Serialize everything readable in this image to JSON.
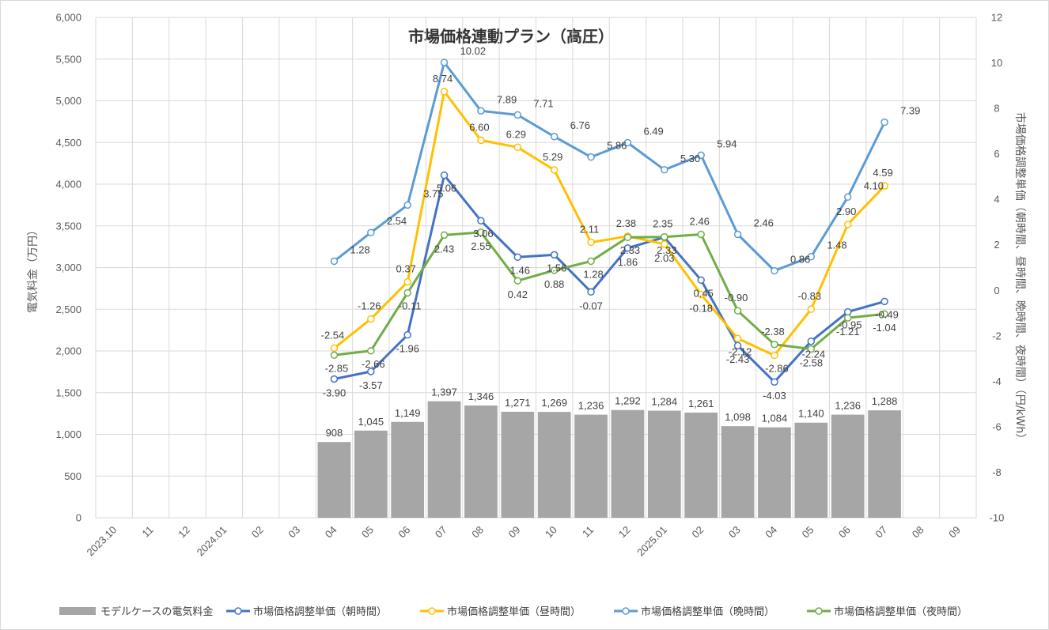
{
  "chart_data": {
    "type": "bar+line",
    "title": "市場価格連動プラン（高圧）",
    "categories": [
      "2023.10",
      "11",
      "12",
      "2024.01",
      "02",
      "03",
      "04",
      "05",
      "06",
      "07",
      "08",
      "09",
      "10",
      "11",
      "12",
      "2025.01",
      "02",
      "03",
      "04",
      "05",
      "06",
      "07",
      "08",
      "09"
    ],
    "y_left": {
      "label": "電気料金（万円）",
      "range": [
        0,
        6000
      ],
      "step": 500,
      "ticks": [
        "0",
        "500",
        "1,000",
        "1,500",
        "2,000",
        "2,500",
        "3,000",
        "3,500",
        "4,000",
        "4,500",
        "5,000",
        "5,500",
        "6,000"
      ]
    },
    "y_right": {
      "label": "市場価格調整単価（朝時間、昼時間、晩時間、夜時間）（円/kWh）",
      "range": [
        -10,
        12
      ],
      "step": 2,
      "ticks": [
        "-10",
        "-8",
        "-6",
        "-4",
        "-2",
        "0",
        "2",
        "4",
        "6",
        "8",
        "10",
        "12"
      ]
    },
    "bar_series": {
      "name": "モデルケースの電気料金",
      "color": "#a6a6a6",
      "values": [
        null,
        null,
        null,
        null,
        null,
        null,
        908,
        1045,
        1149,
        1397,
        1346,
        1271,
        1269,
        1236,
        1292,
        1284,
        1261,
        1098,
        1084,
        1140,
        1236,
        1288,
        null,
        null
      ],
      "labels": [
        "",
        "",
        "",
        "",
        "",
        "",
        "908",
        "1,045",
        "1,149",
        "1,397",
        "1,346",
        "1,271",
        "1,269",
        "1,236",
        "1,292",
        "1,284",
        "1,261",
        "1,098",
        "1,084",
        "1,140",
        "1,236",
        "1,288",
        "",
        ""
      ]
    },
    "line_series": [
      {
        "name": "市場価格調整単価（朝時間）",
        "color": "#4472c4",
        "values": [
          null,
          null,
          null,
          null,
          null,
          null,
          -3.9,
          -3.57,
          -1.96,
          5.06,
          3.06,
          1.46,
          1.56,
          -0.07,
          1.86,
          2.33,
          0.45,
          -2.43,
          -4.03,
          -2.24,
          -0.95,
          -0.49,
          null,
          null
        ],
        "labels": [
          "",
          "",
          "",
          "",
          "",
          "",
          "-3.90",
          "-3.57",
          "-1.96",
          "5.06",
          "3.06",
          "1.46",
          "1.56",
          "-0.07",
          "1.86",
          "2.33",
          "0.45",
          "-2.43",
          "-4.03",
          "-2.24",
          "-0.95",
          "-0.49",
          "",
          ""
        ]
      },
      {
        "name": "市場価格調整単価（昼時間）",
        "color": "#ffc000",
        "values": [
          null,
          null,
          null,
          null,
          null,
          null,
          -2.54,
          -1.26,
          0.37,
          8.74,
          6.6,
          6.29,
          5.29,
          2.11,
          2.38,
          2.03,
          -0.18,
          -2.12,
          -2.86,
          -0.83,
          2.9,
          4.59,
          null,
          null
        ],
        "labels": [
          "",
          "",
          "",
          "",
          "",
          "",
          "-2.54",
          "-1.26",
          "0.37",
          "8.74",
          "6.60",
          "6.29",
          "5.29",
          "2.11",
          "2.38",
          "2.03",
          "-0.18",
          "-2.12",
          "-2.86",
          "-0.83",
          "2.90",
          "4.59",
          "",
          ""
        ]
      },
      {
        "name": "市場価格調整単価（晩時間）",
        "color": "#5b9bd5",
        "values": [
          null,
          null,
          null,
          null,
          null,
          null,
          1.28,
          2.54,
          3.75,
          10.02,
          7.89,
          7.71,
          6.76,
          5.86,
          6.49,
          5.3,
          5.94,
          2.46,
          0.86,
          1.48,
          4.1,
          7.39,
          null,
          null
        ],
        "labels": [
          "",
          "",
          "",
          "",
          "",
          "",
          "1.28",
          "2.54",
          "3.75",
          "10.02",
          "7.89",
          "7.71",
          "6.76",
          "5.86",
          "6.49",
          "5.30",
          "5.94",
          "2.46",
          "0.86",
          "1.48",
          "4.10",
          "7.39",
          "",
          ""
        ]
      },
      {
        "name": "市場価格調整単価（夜時間）",
        "color": "#70ad47",
        "values": [
          null,
          null,
          null,
          null,
          null,
          null,
          -2.85,
          -2.66,
          -0.11,
          2.43,
          2.55,
          0.42,
          0.88,
          1.28,
          2.33,
          2.35,
          2.46,
          -0.9,
          -2.38,
          -2.58,
          -1.21,
          -1.04,
          null,
          null
        ],
        "labels": [
          "",
          "",
          "",
          "",
          "",
          "",
          "-2.85",
          "-2.66",
          "-0.11",
          "2.43",
          "2.55",
          "0.42",
          "0.88",
          "1.28",
          "2.33",
          "2.35",
          "2.46",
          "-0.90",
          "-2.38",
          "-2.58",
          "-1.21",
          "-1.04",
          "",
          ""
        ]
      }
    ],
    "grid": true,
    "legend_position": "bottom"
  }
}
